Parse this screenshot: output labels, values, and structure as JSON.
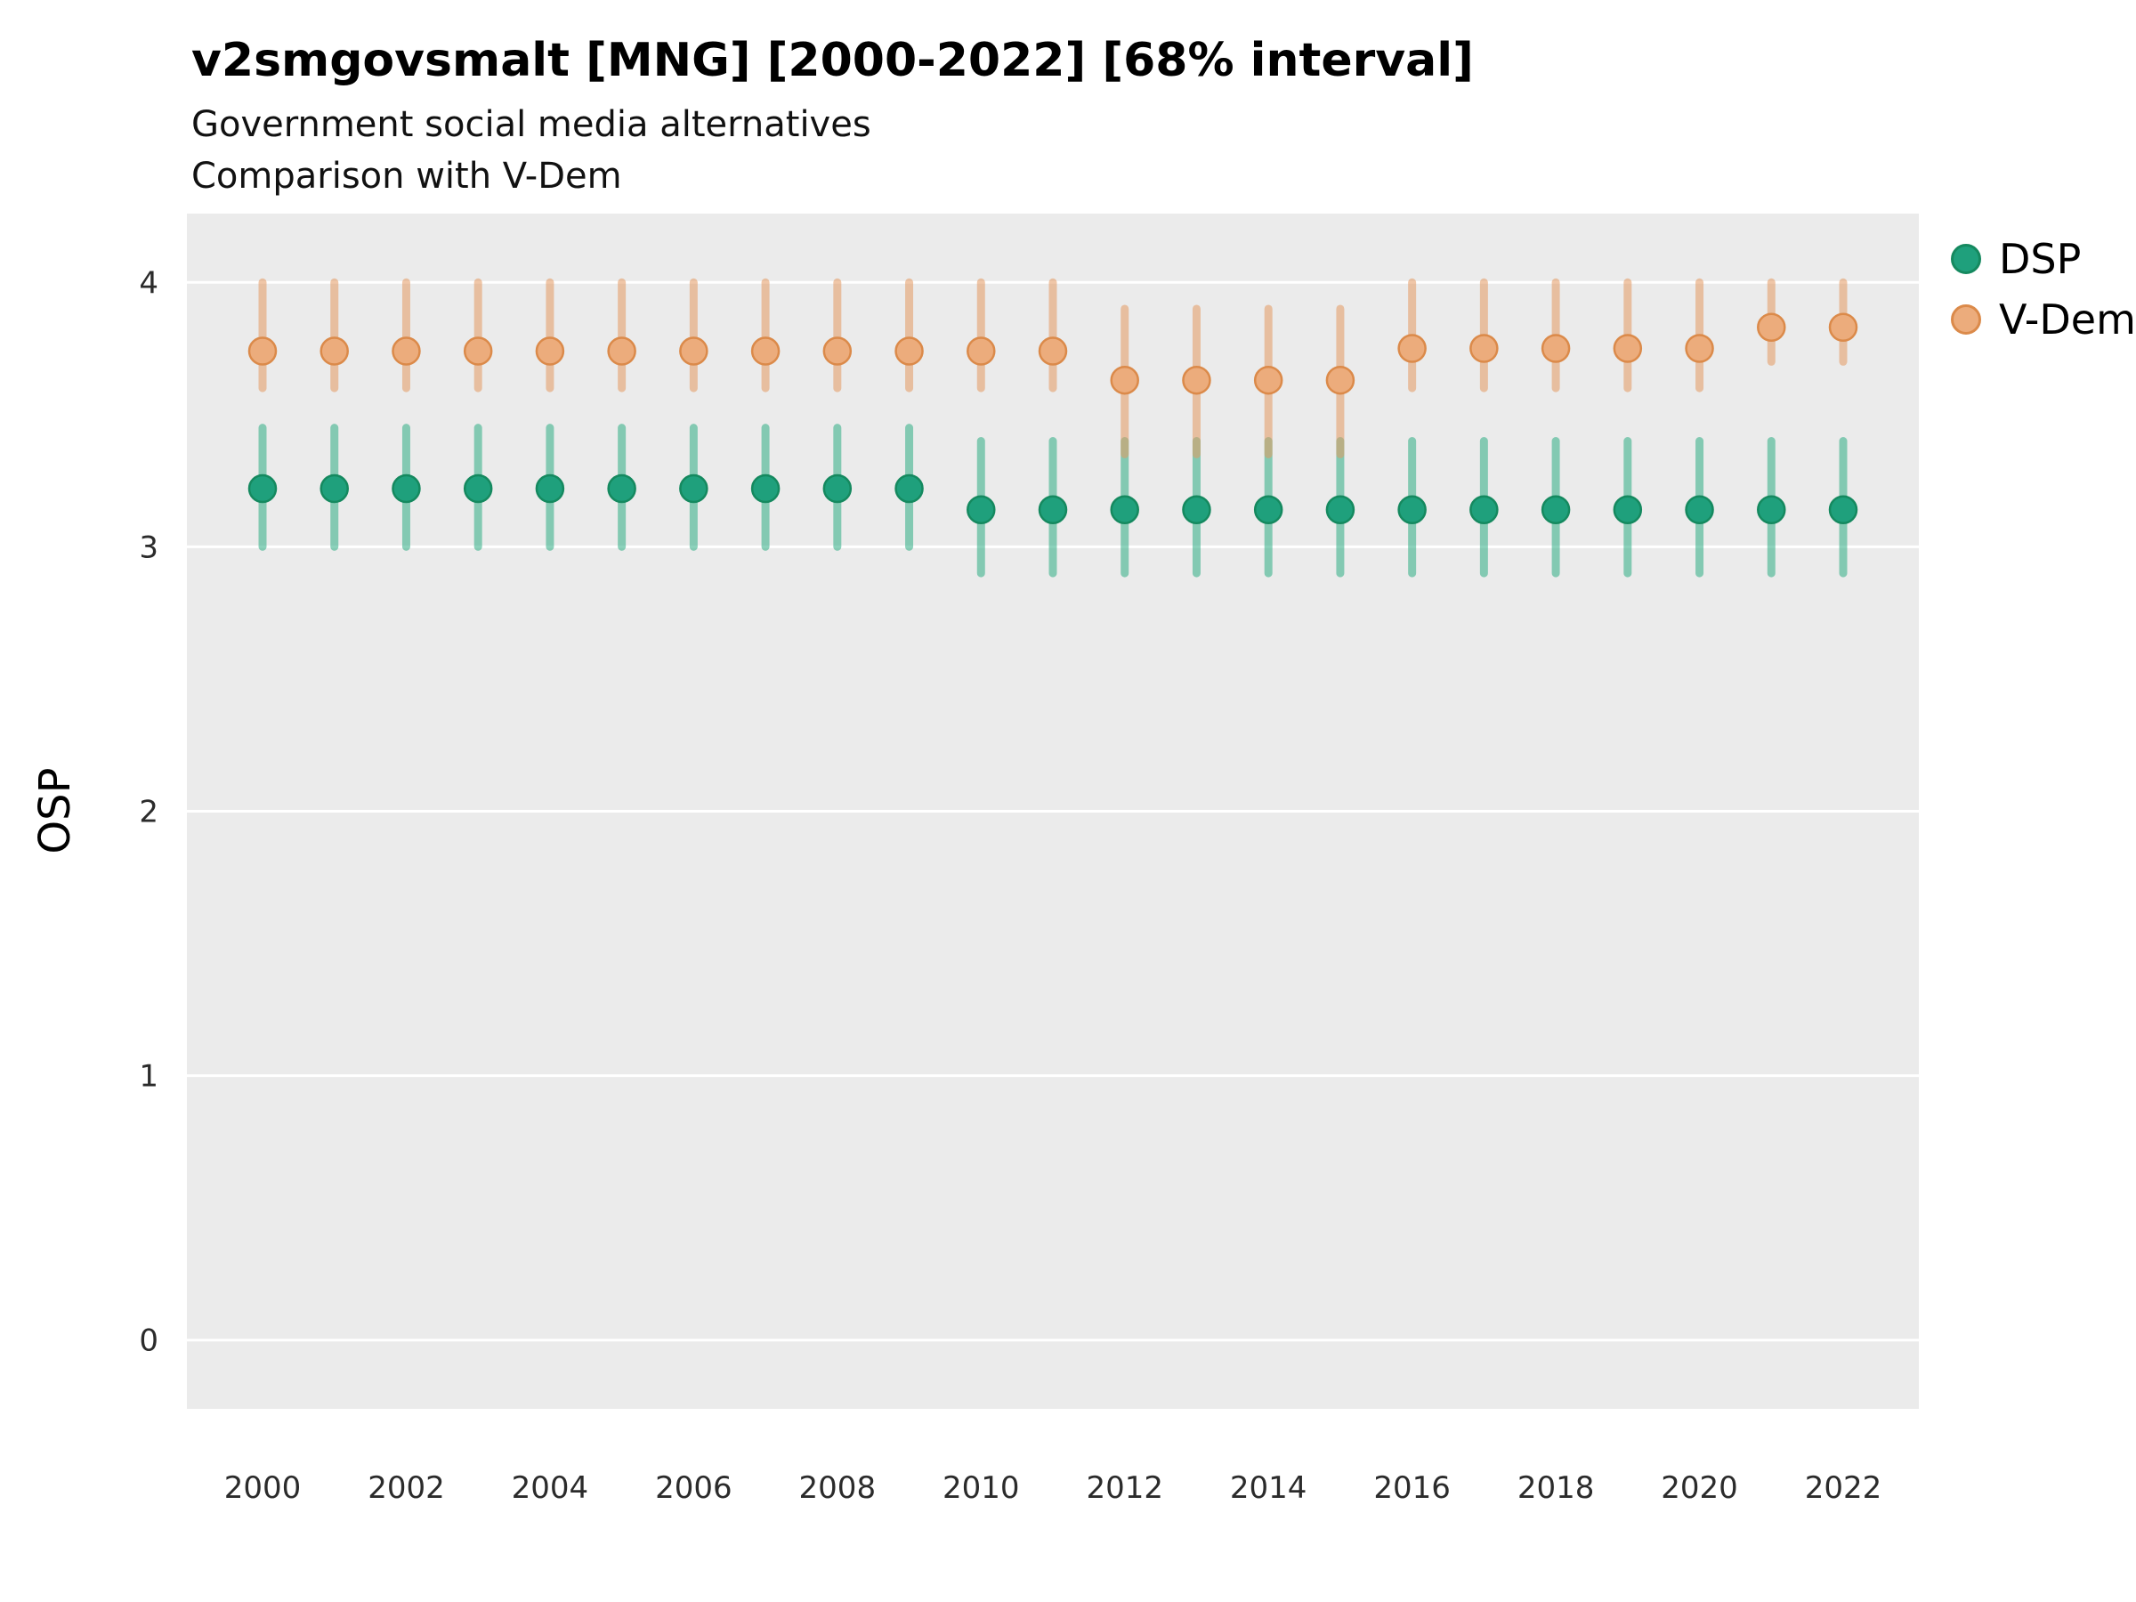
{
  "header": {
    "title": "v2smgovsmalt [MNG] [2000-2022] [68% interval]",
    "subtitle1": "Government social media alternatives",
    "subtitle2": "Comparison with V-Dem"
  },
  "chart_data": {
    "type": "scatter",
    "title": "v2smgovsmalt [MNG] [2000-2022] [68% interval]",
    "subtitle": "Government social media alternatives / Comparison with V-Dem",
    "xlabel": "",
    "ylabel": "OSP",
    "ylim": [
      -0.26,
      4.26
    ],
    "yticks": [
      0,
      1,
      2,
      3,
      4
    ],
    "xticks": [
      2000,
      2002,
      2004,
      2006,
      2008,
      2010,
      2012,
      2014,
      2016,
      2018,
      2020,
      2022
    ],
    "grid": true,
    "legend_position": "right",
    "panel_color": "#EBEBEB",
    "gridline_color": "#FFFFFF",
    "x": [
      2000,
      2001,
      2002,
      2003,
      2004,
      2005,
      2006,
      2007,
      2008,
      2009,
      2010,
      2011,
      2012,
      2013,
      2014,
      2015,
      2016,
      2017,
      2018,
      2019,
      2020,
      2021,
      2022
    ],
    "interval": "68%",
    "series": [
      {
        "name": "DSP",
        "color": "#1FA07C",
        "stroke": "#15895F",
        "bar_color": "#2FAE85",
        "values": [
          3.22,
          3.22,
          3.22,
          3.22,
          3.22,
          3.22,
          3.22,
          3.22,
          3.22,
          3.22,
          3.14,
          3.14,
          3.14,
          3.14,
          3.14,
          3.14,
          3.14,
          3.14,
          3.14,
          3.14,
          3.14,
          3.14,
          3.14
        ],
        "lower": [
          3.0,
          3.0,
          3.0,
          3.0,
          3.0,
          3.0,
          3.0,
          3.0,
          3.0,
          3.0,
          2.9,
          2.9,
          2.9,
          2.9,
          2.9,
          2.9,
          2.9,
          2.9,
          2.9,
          2.9,
          2.9,
          2.9,
          2.9
        ],
        "upper": [
          3.45,
          3.45,
          3.45,
          3.45,
          3.45,
          3.45,
          3.45,
          3.45,
          3.45,
          3.45,
          3.4,
          3.4,
          3.4,
          3.4,
          3.4,
          3.4,
          3.4,
          3.4,
          3.4,
          3.4,
          3.4,
          3.4,
          3.4
        ]
      },
      {
        "name": "V-Dem",
        "color": "#ECAC7C",
        "stroke": "#DB8A4A",
        "bar_color": "#E49A62",
        "values": [
          3.74,
          3.74,
          3.74,
          3.74,
          3.74,
          3.74,
          3.74,
          3.74,
          3.74,
          3.74,
          3.74,
          3.74,
          3.63,
          3.63,
          3.63,
          3.63,
          3.75,
          3.75,
          3.75,
          3.75,
          3.75,
          3.83,
          3.83
        ],
        "lower": [
          3.6,
          3.6,
          3.6,
          3.6,
          3.6,
          3.6,
          3.6,
          3.6,
          3.6,
          3.6,
          3.6,
          3.6,
          3.35,
          3.35,
          3.35,
          3.35,
          3.6,
          3.6,
          3.6,
          3.6,
          3.6,
          3.7,
          3.7
        ],
        "upper": [
          4.0,
          4.0,
          4.0,
          4.0,
          4.0,
          4.0,
          4.0,
          4.0,
          4.0,
          4.0,
          4.0,
          4.0,
          3.9,
          3.9,
          3.9,
          3.9,
          4.0,
          4.0,
          4.0,
          4.0,
          4.0,
          4.0,
          4.0
        ]
      }
    ]
  }
}
